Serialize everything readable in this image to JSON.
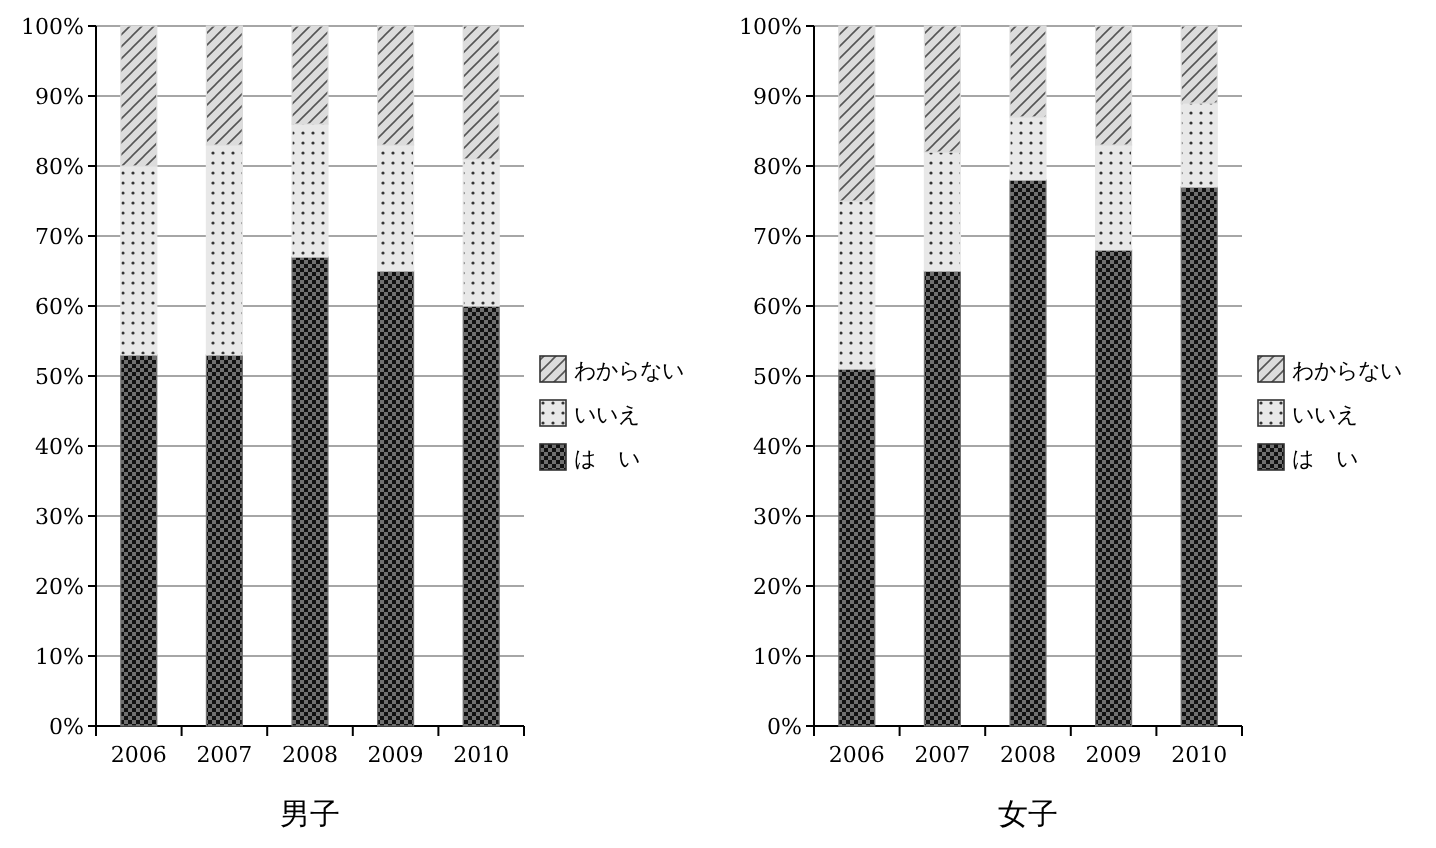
{
  "chart_data": [
    {
      "type": "bar",
      "stacked": true,
      "title": "男子",
      "categories": [
        "2006",
        "2007",
        "2008",
        "2009",
        "2010"
      ],
      "ylim": [
        0,
        100
      ],
      "yticks": [
        {
          "value": 0,
          "label": "0%"
        },
        {
          "value": 10,
          "label": "10%"
        },
        {
          "value": 20,
          "label": "20%"
        },
        {
          "value": 30,
          "label": "30%"
        },
        {
          "value": 40,
          "label": "40%"
        },
        {
          "value": 50,
          "label": "50%"
        },
        {
          "value": 60,
          "label": "60%"
        },
        {
          "value": 70,
          "label": "70%"
        },
        {
          "value": 80,
          "label": "80%"
        },
        {
          "value": 90,
          "label": "90%"
        },
        {
          "value": 100,
          "label": "100%"
        }
      ],
      "grid": "y",
      "legend": "right",
      "series": [
        {
          "name": "は　い",
          "color": "#707070",
          "values": [
            53,
            53,
            67,
            65,
            60
          ]
        },
        {
          "name": "いいえ",
          "color": "#e8e8e8",
          "values": [
            27,
            30,
            19,
            18,
            21
          ]
        },
        {
          "name": "わからない",
          "color": "#dcdcdc",
          "values": [
            20,
            17,
            14,
            17,
            19
          ]
        }
      ]
    },
    {
      "type": "bar",
      "stacked": true,
      "title": "女子",
      "categories": [
        "2006",
        "2007",
        "2008",
        "2009",
        "2010"
      ],
      "ylim": [
        0,
        100
      ],
      "yticks": [
        {
          "value": 0,
          "label": "0%"
        },
        {
          "value": 10,
          "label": "10%"
        },
        {
          "value": 20,
          "label": "20%"
        },
        {
          "value": 30,
          "label": "30%"
        },
        {
          "value": 40,
          "label": "40%"
        },
        {
          "value": 50,
          "label": "50%"
        },
        {
          "value": 60,
          "label": "60%"
        },
        {
          "value": 70,
          "label": "70%"
        },
        {
          "value": 80,
          "label": "80%"
        },
        {
          "value": 90,
          "label": "90%"
        },
        {
          "value": 100,
          "label": "100%"
        }
      ],
      "grid": "y",
      "legend": "right",
      "series": [
        {
          "name": "は　い",
          "color": "#707070",
          "values": [
            51,
            65,
            78,
            68,
            77
          ]
        },
        {
          "name": "いいえ",
          "color": "#e8e8e8",
          "values": [
            24,
            17,
            9,
            15,
            12
          ]
        },
        {
          "name": "わからない",
          "color": "#dcdcdc",
          "values": [
            25,
            18,
            13,
            17,
            11
          ]
        }
      ]
    }
  ]
}
